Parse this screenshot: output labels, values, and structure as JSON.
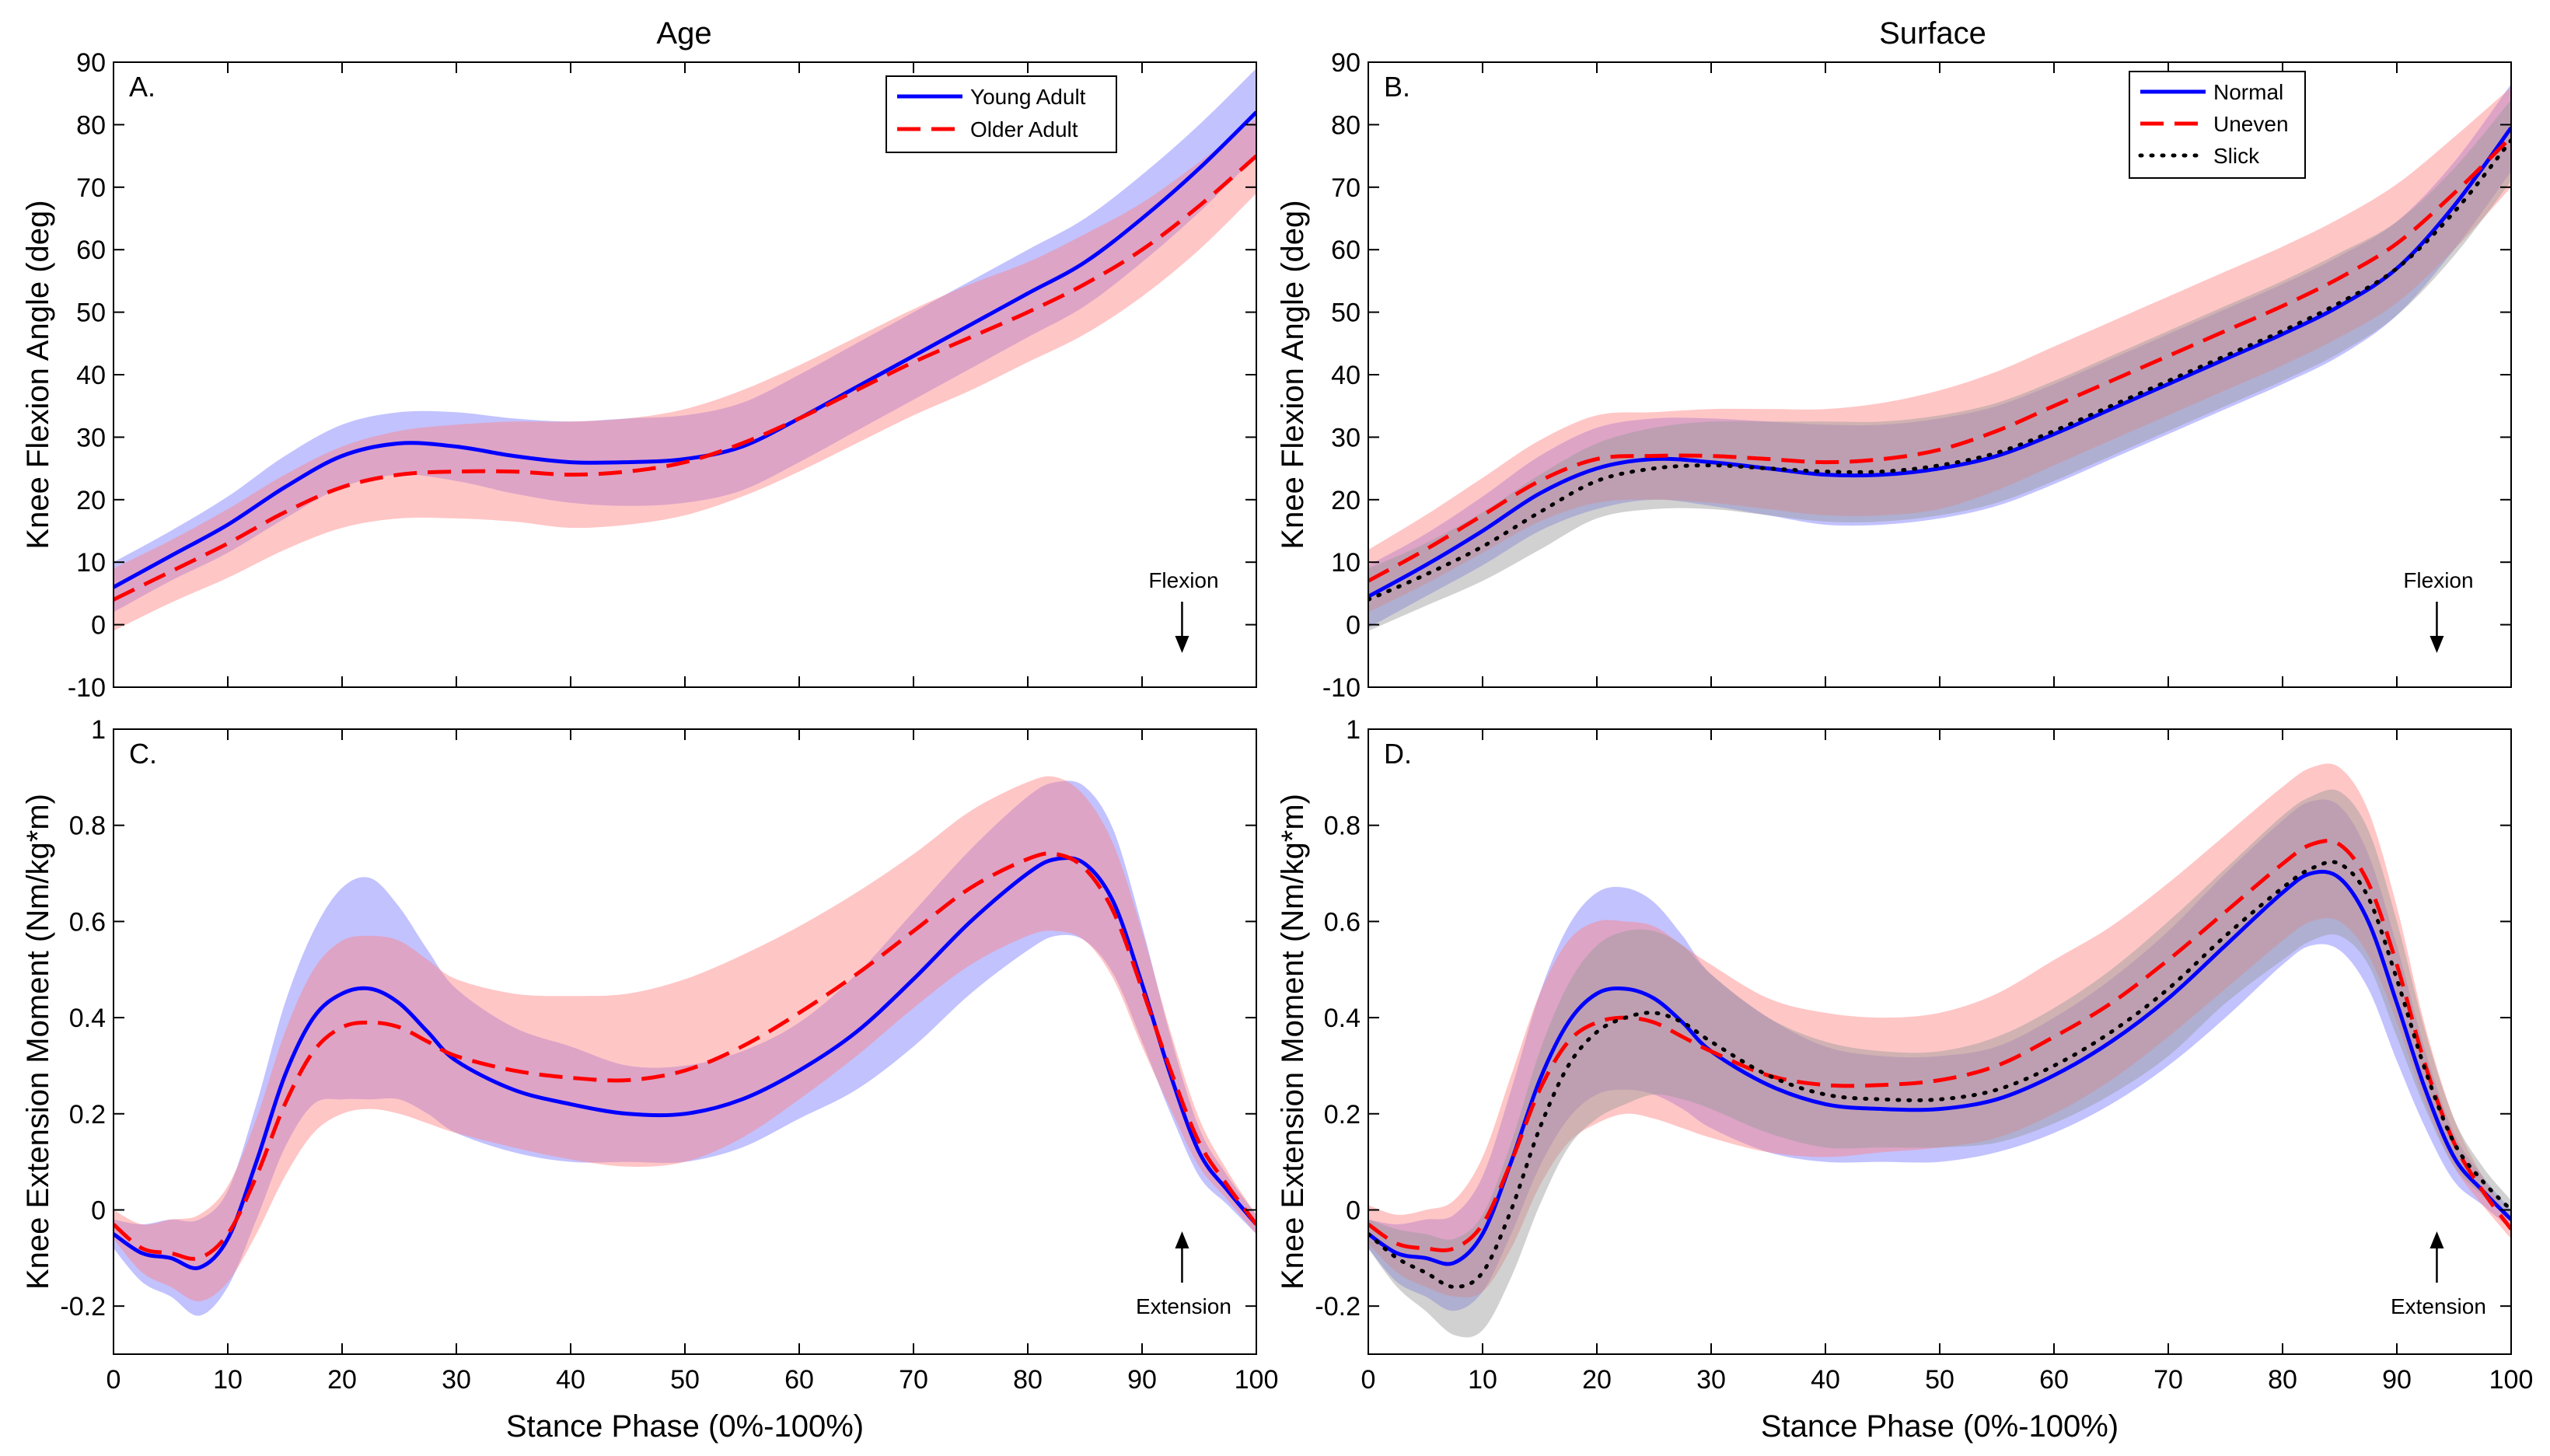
{
  "figure": {
    "column_titles": [
      "Age",
      "Surface"
    ],
    "annotations": {
      "flexion": "Flexion",
      "extension": "Extension"
    }
  },
  "colors": {
    "blue": "#0000ff",
    "red": "#ff0000",
    "black": "#000000",
    "band_blue": "#7777ff",
    "band_red": "#ff8080",
    "band_gray": "#999999"
  },
  "chart_data": [
    {
      "type": "line",
      "panel": "A.",
      "title": "Age",
      "xlabel": "",
      "ylabel": "Knee Flexion Angle (deg)",
      "xlim": [
        0,
        100
      ],
      "ylim": [
        -10,
        90
      ],
      "xticks": [
        0,
        10,
        20,
        30,
        40,
        50,
        60,
        70,
        80,
        90,
        100
      ],
      "yticks": [
        -10,
        0,
        10,
        20,
        30,
        40,
        50,
        60,
        70,
        80,
        90
      ],
      "show_xtick_labels": false,
      "legend": "top-right",
      "annotation": "flexion",
      "x": [
        0,
        5,
        10,
        15,
        20,
        25,
        30,
        35,
        40,
        45,
        50,
        55,
        60,
        65,
        70,
        75,
        80,
        85,
        90,
        95,
        100
      ],
      "series": [
        {
          "name": "Young Adult",
          "color": "blue",
          "dash": "solid",
          "values": [
            6,
            11,
            16,
            22,
            27,
            29,
            28.5,
            27,
            26,
            26,
            26.5,
            28.5,
            33,
            38,
            43,
            48,
            53,
            58,
            65,
            73,
            82
          ],
          "sd": [
            4,
            4,
            4.5,
            5,
            5,
            5,
            5.5,
            6,
            6.5,
            7,
            7,
            7,
            7,
            7,
            7,
            7,
            7,
            7,
            7,
            7,
            7
          ]
        },
        {
          "name": "Older Adult",
          "color": "red",
          "dash": "dashed",
          "values": [
            4,
            8.5,
            13,
            18,
            22,
            24,
            24.5,
            24.5,
            24,
            24.5,
            26,
            29,
            33,
            37.5,
            42,
            46,
            50,
            54.5,
            60,
            67,
            75
          ],
          "sd": [
            5,
            5,
            5.5,
            6,
            6.5,
            7,
            7.5,
            8,
            8.5,
            8.5,
            8.5,
            8.5,
            8.5,
            8.5,
            8.5,
            8.5,
            8,
            8,
            7.5,
            7,
            6
          ]
        }
      ]
    },
    {
      "type": "line",
      "panel": "B.",
      "title": "Surface",
      "xlabel": "",
      "ylabel": "Knee Flexion Angle (deg)",
      "xlim": [
        0,
        100
      ],
      "ylim": [
        -10,
        90
      ],
      "xticks": [
        0,
        10,
        20,
        30,
        40,
        50,
        60,
        70,
        80,
        90,
        100
      ],
      "yticks": [
        -10,
        0,
        10,
        20,
        30,
        40,
        50,
        60,
        70,
        80,
        90
      ],
      "show_xtick_labels": false,
      "legend": "top-right",
      "annotation": "flexion",
      "x": [
        0,
        5,
        10,
        15,
        20,
        25,
        30,
        35,
        40,
        45,
        50,
        55,
        60,
        65,
        70,
        75,
        80,
        85,
        90,
        95,
        100
      ],
      "series": [
        {
          "name": "Normal",
          "color": "blue",
          "dash": "solid",
          "values": [
            4.5,
            9.5,
            15,
            21,
            25,
            26.5,
            26,
            25,
            24,
            24,
            25,
            27,
            30.5,
            34.5,
            38.5,
            42.5,
            46.5,
            51,
            57,
            67,
            79.5
          ],
          "sd": [
            5,
            5,
            5.5,
            6,
            6.5,
            6.5,
            7,
            7.5,
            8,
            8,
            8,
            8,
            8,
            8,
            8,
            8,
            8,
            8,
            7.5,
            7,
            7
          ]
        },
        {
          "name": "Uneven",
          "color": "red",
          "dash": "dashed",
          "values": [
            7,
            12,
            17.5,
            23,
            26.5,
            27,
            27,
            26.5,
            26,
            26.5,
            28,
            31,
            35,
            39,
            43,
            47,
            51,
            55.5,
            61,
            69,
            78
          ],
          "sd": [
            5,
            5.5,
            6,
            6.5,
            7,
            7,
            7.5,
            8,
            8.5,
            9,
            9.5,
            9.5,
            9.5,
            9.5,
            9.5,
            9.5,
            9.5,
            9.5,
            9.5,
            9,
            8
          ]
        },
        {
          "name": "Slick",
          "color": "black",
          "dash": "dotted",
          "values": [
            4,
            8,
            12.5,
            18,
            23,
            25,
            25.5,
            25,
            24.5,
            24.5,
            25.5,
            27.5,
            31,
            35,
            39,
            43,
            47,
            51.5,
            57,
            66,
            77.5
          ],
          "sd": [
            5,
            5,
            5.5,
            6,
            6,
            6.5,
            7,
            7.5,
            8,
            8,
            8,
            8,
            8,
            8,
            8,
            8,
            8,
            8,
            7.5,
            7,
            6.5
          ]
        }
      ]
    },
    {
      "type": "line",
      "panel": "C.",
      "title": "",
      "xlabel": "Stance Phase (0%-100%)",
      "ylabel": "Knee Extension Moment (Nm/kg*m)",
      "xlim": [
        0,
        100
      ],
      "ylim": [
        -0.3,
        1
      ],
      "xticks": [
        0,
        10,
        20,
        30,
        40,
        50,
        60,
        70,
        80,
        90,
        100
      ],
      "yticks": [
        -0.2,
        0,
        0.2,
        0.4,
        0.6,
        0.8,
        1
      ],
      "ytick_labels": [
        "-0.2",
        "0",
        "0.2",
        "0.4",
        "0.6",
        "0.8",
        "1"
      ],
      "show_xtick_labels": true,
      "legend": "none",
      "annotation": "extension",
      "x": [
        0,
        2.5,
        5,
        7.5,
        10,
        12.5,
        15,
        17.5,
        20,
        22.5,
        25,
        27.5,
        30,
        35,
        40,
        45,
        50,
        55,
        60,
        65,
        70,
        75,
        80,
        82.5,
        85,
        87.5,
        90,
        92.5,
        95,
        97.5,
        100
      ],
      "series": [
        {
          "name": "Young Adult",
          "color": "blue",
          "dash": "solid",
          "values": [
            -0.05,
            -0.09,
            -0.1,
            -0.12,
            -0.06,
            0.1,
            0.28,
            0.4,
            0.45,
            0.46,
            0.43,
            0.37,
            0.31,
            0.25,
            0.22,
            0.2,
            0.2,
            0.23,
            0.29,
            0.37,
            0.48,
            0.6,
            0.7,
            0.73,
            0.72,
            0.64,
            0.47,
            0.28,
            0.12,
            0.04,
            -0.03
          ],
          "sd": [
            0.03,
            0.06,
            0.08,
            0.1,
            0.1,
            0.12,
            0.15,
            0.18,
            0.22,
            0.23,
            0.2,
            0.17,
            0.15,
            0.13,
            0.12,
            0.1,
            0.1,
            0.1,
            0.1,
            0.12,
            0.14,
            0.15,
            0.16,
            0.16,
            0.16,
            0.15,
            0.12,
            0.08,
            0.05,
            0.03,
            0.02
          ]
        },
        {
          "name": "Older Adult",
          "color": "red",
          "dash": "dashed",
          "values": [
            -0.03,
            -0.08,
            -0.09,
            -0.1,
            -0.05,
            0.07,
            0.22,
            0.33,
            0.38,
            0.39,
            0.38,
            0.35,
            0.32,
            0.29,
            0.275,
            0.27,
            0.29,
            0.34,
            0.41,
            0.49,
            0.58,
            0.67,
            0.73,
            0.74,
            0.71,
            0.62,
            0.46,
            0.29,
            0.14,
            0.05,
            -0.03
          ],
          "sd": [
            0.03,
            0.05,
            0.07,
            0.09,
            0.1,
            0.12,
            0.15,
            0.17,
            0.18,
            0.18,
            0.18,
            0.17,
            0.16,
            0.16,
            0.17,
            0.18,
            0.19,
            0.19,
            0.18,
            0.17,
            0.16,
            0.16,
            0.16,
            0.16,
            0.15,
            0.14,
            0.12,
            0.08,
            0.05,
            0.03,
            0.02
          ]
        }
      ]
    },
    {
      "type": "line",
      "panel": "D.",
      "title": "",
      "xlabel": "Stance Phase (0%-100%)",
      "ylabel": "Knee Extension Moment (Nm/kg*m)",
      "xlim": [
        0,
        100
      ],
      "ylim": [
        -0.3,
        1
      ],
      "xticks": [
        0,
        10,
        20,
        30,
        40,
        50,
        60,
        70,
        80,
        90,
        100
      ],
      "yticks": [
        -0.2,
        0,
        0.2,
        0.4,
        0.6,
        0.8,
        1
      ],
      "ytick_labels": [
        "-0.2",
        "0",
        "0.2",
        "0.4",
        "0.6",
        "0.8",
        "1"
      ],
      "show_xtick_labels": true,
      "legend": "none",
      "annotation": "extension",
      "x": [
        0,
        2.5,
        5,
        7.5,
        10,
        12.5,
        15,
        17.5,
        20,
        22.5,
        25,
        27.5,
        30,
        35,
        40,
        45,
        50,
        55,
        60,
        65,
        70,
        75,
        80,
        82.5,
        85,
        87.5,
        90,
        92.5,
        95,
        97.5,
        100
      ],
      "series": [
        {
          "name": "Normal",
          "color": "blue",
          "dash": "solid",
          "values": [
            -0.05,
            -0.09,
            -0.1,
            -0.11,
            -0.05,
            0.1,
            0.27,
            0.39,
            0.45,
            0.46,
            0.44,
            0.39,
            0.33,
            0.26,
            0.22,
            0.21,
            0.21,
            0.23,
            0.28,
            0.35,
            0.44,
            0.55,
            0.66,
            0.7,
            0.69,
            0.6,
            0.43,
            0.25,
            0.11,
            0.04,
            -0.02
          ],
          "sd": [
            0.03,
            0.06,
            0.08,
            0.1,
            0.12,
            0.15,
            0.18,
            0.2,
            0.21,
            0.21,
            0.2,
            0.18,
            0.16,
            0.14,
            0.12,
            0.11,
            0.11,
            0.11,
            0.12,
            0.13,
            0.14,
            0.15,
            0.15,
            0.15,
            0.15,
            0.14,
            0.12,
            0.08,
            0.05,
            0.03,
            0.02
          ]
        },
        {
          "name": "Uneven",
          "color": "red",
          "dash": "dashed",
          "values": [
            -0.03,
            -0.07,
            -0.08,
            -0.08,
            -0.03,
            0.1,
            0.25,
            0.35,
            0.39,
            0.4,
            0.39,
            0.36,
            0.33,
            0.28,
            0.26,
            0.26,
            0.27,
            0.3,
            0.36,
            0.43,
            0.52,
            0.62,
            0.72,
            0.76,
            0.76,
            0.68,
            0.51,
            0.3,
            0.14,
            0.04,
            -0.04
          ],
          "sd": [
            0.04,
            0.06,
            0.08,
            0.1,
            0.14,
            0.18,
            0.2,
            0.21,
            0.21,
            0.2,
            0.2,
            0.19,
            0.18,
            0.16,
            0.15,
            0.14,
            0.14,
            0.15,
            0.16,
            0.16,
            0.16,
            0.16,
            0.16,
            0.16,
            0.16,
            0.15,
            0.12,
            0.08,
            0.05,
            0.03,
            0.02
          ]
        },
        {
          "name": "Slick",
          "color": "black",
          "dash": "dotted",
          "values": [
            -0.05,
            -0.1,
            -0.13,
            -0.16,
            -0.13,
            0.0,
            0.17,
            0.3,
            0.37,
            0.4,
            0.41,
            0.39,
            0.35,
            0.28,
            0.24,
            0.23,
            0.23,
            0.25,
            0.3,
            0.37,
            0.46,
            0.57,
            0.67,
            0.71,
            0.72,
            0.65,
            0.48,
            0.29,
            0.14,
            0.06,
            0.0
          ],
          "sd": [
            0.03,
            0.06,
            0.08,
            0.1,
            0.12,
            0.14,
            0.16,
            0.17,
            0.18,
            0.18,
            0.17,
            0.16,
            0.14,
            0.12,
            0.11,
            0.1,
            0.1,
            0.11,
            0.12,
            0.13,
            0.14,
            0.14,
            0.15,
            0.15,
            0.15,
            0.14,
            0.12,
            0.08,
            0.05,
            0.03,
            0.02
          ]
        }
      ]
    }
  ]
}
